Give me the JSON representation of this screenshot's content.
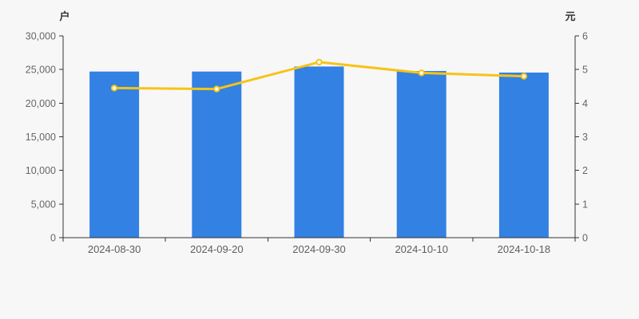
{
  "chart_data": {
    "type": "combo-bar-line",
    "categories": [
      "2024-08-30",
      "2024-09-20",
      "2024-09-30",
      "2024-10-10",
      "2024-10-18"
    ],
    "series": [
      {
        "name": "bar-series",
        "type": "bar",
        "axis": "left",
        "unit": "户",
        "values": [
          24700,
          24700,
          25450,
          24780,
          24550
        ]
      },
      {
        "name": "line-series",
        "type": "line",
        "axis": "right",
        "unit": "元",
        "values": [
          4.45,
          4.42,
          5.22,
          4.9,
          4.8
        ]
      }
    ],
    "left_axis": {
      "label": "户",
      "min": 0,
      "max": 30000,
      "step": 5000,
      "ticks": [
        "0",
        "5,000",
        "10,000",
        "15,000",
        "20,000",
        "25,000",
        "30,000"
      ]
    },
    "right_axis": {
      "label": "元",
      "min": 0,
      "max": 6,
      "step": 1,
      "ticks": [
        "0",
        "1",
        "2",
        "3",
        "4",
        "5",
        "6"
      ]
    },
    "legend": "none",
    "grid_lines": "none",
    "colors": {
      "bar": "#3381e3",
      "line": "#f7c316",
      "marker_fill": "#ffffff",
      "axis": "#333333",
      "tick_text": "#666666",
      "category_text": "#5e5e5e",
      "background": "#f7f7f7"
    }
  }
}
